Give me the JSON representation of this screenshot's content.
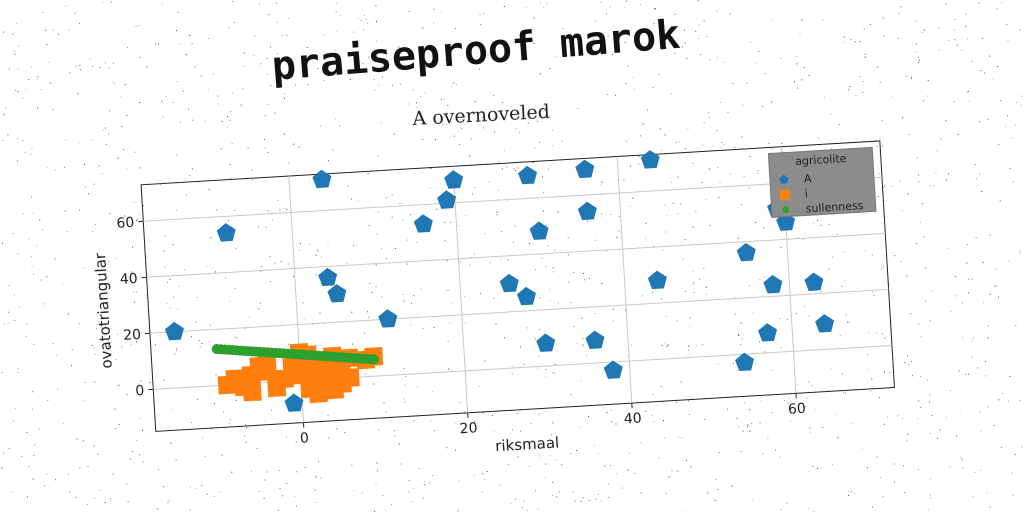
{
  "title": "praiseproof marok",
  "subtitle": "A overnoveled",
  "colors": {
    "series_a": "#1f77b4",
    "series_i": "#ff7f0e",
    "series_sullenness": "#2ca02c",
    "grid": "#c8c8c8",
    "legend_bg": "#8c8c8c"
  },
  "chart_data": {
    "type": "scatter",
    "title": "A overnoveled",
    "xlabel": "riksmaal",
    "ylabel": "ovatotriangular",
    "xlim": [
      -18,
      72
    ],
    "ylim": [
      -15,
      73
    ],
    "xticks": [
      0,
      20,
      40,
      60
    ],
    "yticks": [
      0,
      20,
      40,
      60
    ],
    "grid": true,
    "legend_title": "agricolite",
    "legend_position": "top-right",
    "series": [
      {
        "name": "A",
        "marker": "pentagon",
        "points": [
          [
            -15,
            20
          ],
          [
            -8,
            54
          ],
          [
            4,
            71
          ],
          [
            4,
            36
          ],
          [
            5,
            30
          ],
          [
            11,
            20
          ],
          [
            -1,
            -8
          ],
          [
            16,
            53
          ],
          [
            19,
            61
          ],
          [
            20,
            68
          ],
          [
            26,
            30
          ],
          [
            28,
            25
          ],
          [
            29,
            68
          ],
          [
            30,
            48
          ],
          [
            30,
            8
          ],
          [
            36,
            54
          ],
          [
            36,
            69
          ],
          [
            36,
            8
          ],
          [
            38,
            -3
          ],
          [
            44,
            71
          ],
          [
            44,
            28
          ],
          [
            54,
            -3
          ],
          [
            55,
            36
          ],
          [
            57,
            7
          ],
          [
            58,
            24
          ],
          [
            59,
            51
          ],
          [
            60,
            54
          ],
          [
            60,
            46
          ],
          [
            63,
            24
          ],
          [
            64,
            9
          ]
        ]
      },
      {
        "name": "i",
        "marker": "square",
        "points": [
          [
            -9,
            0
          ],
          [
            -8,
            2
          ],
          [
            -7,
            -1
          ],
          [
            -6,
            3
          ],
          [
            -5,
            6
          ],
          [
            -4,
            4
          ],
          [
            -3,
            -2
          ],
          [
            -2,
            1
          ],
          [
            -1,
            5
          ],
          [
            0,
            7
          ],
          [
            0,
            2
          ],
          [
            1,
            -3
          ],
          [
            1,
            9
          ],
          [
            2,
            4
          ],
          [
            2,
            -1
          ],
          [
            3,
            6
          ],
          [
            3,
            1
          ],
          [
            4,
            8
          ],
          [
            4,
            3
          ],
          [
            5,
            -2
          ],
          [
            5,
            5
          ],
          [
            6,
            7
          ],
          [
            6,
            0
          ],
          [
            -6,
            -3
          ],
          [
            -4,
            8
          ],
          [
            0,
            10
          ],
          [
            2,
            -5
          ],
          [
            4,
            -4
          ],
          [
            8,
            6
          ],
          [
            9,
            7
          ]
        ]
      },
      {
        "name": "sullenness",
        "marker": "circle",
        "line": {
          "x0": -10,
          "y0": 13,
          "x1": 9,
          "y1": 6
        }
      }
    ]
  }
}
